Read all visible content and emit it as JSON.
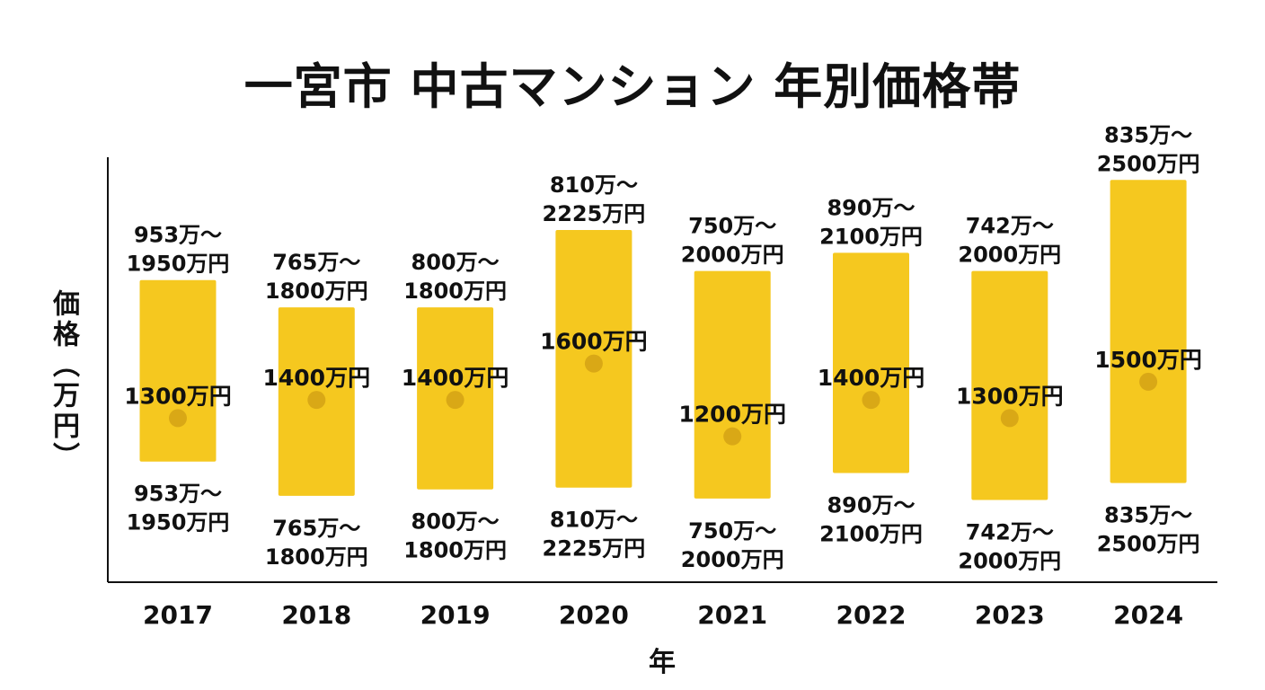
{
  "chart_data": {
    "type": "bar",
    "subtype": "range",
    "title": "一宮市 中古マンション 年別価格帯",
    "xlabel": "年",
    "ylabel": "価格（万円）",
    "categories": [
      "2017",
      "2018",
      "2019",
      "2020",
      "2021",
      "2022",
      "2023",
      "2024"
    ],
    "series": [
      {
        "name": "",
        "key": "low",
        "values": [
          953,
          765,
          800,
          810,
          750,
          890,
          742,
          835
        ]
      },
      {
        "name": "",
        "key": "high",
        "values": [
          1950,
          1800,
          1800,
          2225,
          2000,
          2100,
          2000,
          2500
        ]
      },
      {
        "name": "",
        "key": "mid",
        "values": [
          1300,
          1400,
          1400,
          1600,
          1200,
          1400,
          1300,
          1500
        ]
      }
    ],
    "range_labels": [
      "953万〜\n1950万円",
      "765万〜\n1800万円",
      "800万〜\n1800万円",
      "810万〜\n2225万円",
      "750万〜\n2000万円",
      "890万〜\n2100万円",
      "742万〜\n2000万円",
      "835万〜\n2500万円"
    ],
    "mid_labels": [
      "1300万円",
      "1400万円",
      "1400万円",
      "1600万円",
      "1200万円",
      "1400万円",
      "1300万円",
      "1500万円"
    ],
    "colors": {
      "bar": "#f5c81f",
      "dot": "#d9a816",
      "axis": "#111111",
      "text": "#111111"
    },
    "grid": false,
    "legend": "none"
  }
}
